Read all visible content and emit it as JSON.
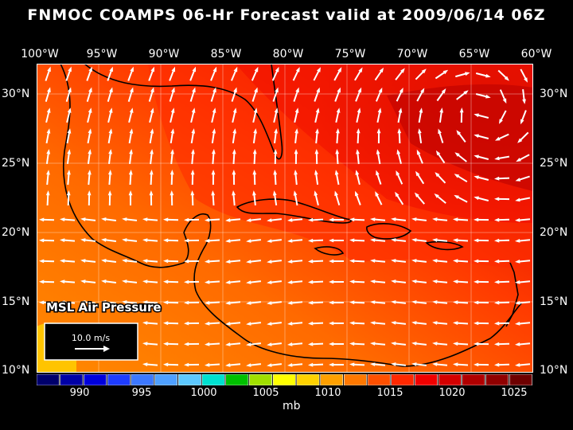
{
  "title": "FNMOC COAMPS 06-Hr Forecast valid at 2009/06/14 06Z",
  "lon_labels": [
    "100°W",
    "95°W",
    "90°W",
    "85°W",
    "80°W",
    "75°W",
    "70°W",
    "65°W",
    "60°W"
  ],
  "lat_labels": [
    "30°N",
    "25°N",
    "20°N",
    "15°N",
    "10°N"
  ],
  "map": {
    "field_label": "MSL Air Pressure",
    "vector_legend": "10.0 m/s"
  },
  "colorbar": {
    "colors": [
      "#00006b",
      "#0000a6",
      "#0000dc",
      "#1e3cff",
      "#3c78ff",
      "#4fa0ff",
      "#5cc8ff",
      "#00e0d0",
      "#00c000",
      "#a0e000",
      "#ffff00",
      "#ffd200",
      "#ffa000",
      "#ff7800",
      "#ff5000",
      "#ff2800",
      "#f00000",
      "#d40000",
      "#b00000",
      "#900000",
      "#6e0000"
    ],
    "tick_labels": [
      "990",
      "995",
      "1000",
      "1005",
      "1010",
      "1015",
      "1020",
      "1025"
    ],
    "unit": "mb"
  },
  "colors": {
    "background": "#000000",
    "high_pressure": "#c80000",
    "mid_pressure": "#ff3000",
    "low_pressure": "#ff7a00",
    "lowest_pressure": "#ffc800",
    "vectors": "#ffffff"
  }
}
